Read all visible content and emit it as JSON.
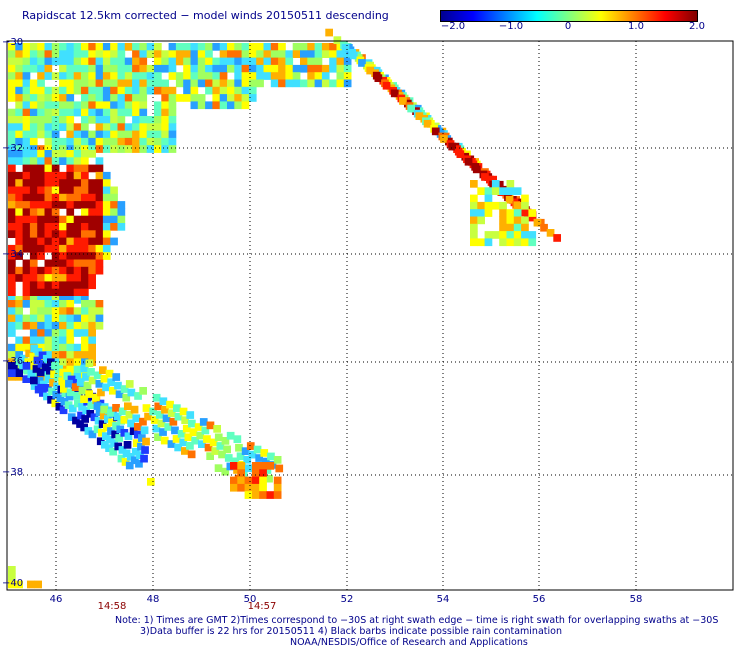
{
  "title": "Rapidscat 12.5km corrected − model winds 20150511 descending",
  "colorbar": {
    "ticks": [
      "−2.0",
      "−1.0",
      "0",
      "1.0",
      "2.0"
    ],
    "colors": [
      "#00008f",
      "#0000ff",
      "#0080ff",
      "#00ffff",
      "#80ff80",
      "#ffff00",
      "#ff8000",
      "#ff0000",
      "#800000"
    ]
  },
  "axes": {
    "lat_labels": [
      "−30",
      "−32",
      "−34",
      "−36",
      "−38",
      "−40"
    ],
    "lon_labels": [
      "46",
      "48",
      "50",
      "52",
      "54",
      "56",
      "58"
    ]
  },
  "time_labels": [
    "14:58",
    "14:57"
  ],
  "notes": {
    "line1": "Note: 1) Times are GMT 2)Times correspond to −30S at right swath edge − time is right swath for overlapping swaths at −30S",
    "line2": "3)Data buffer is 22 hrs for 20150511 4) Black barbs indicate possible rain contamination",
    "line3": "NOAA/NESDIS/Office of Research and Applications"
  }
}
